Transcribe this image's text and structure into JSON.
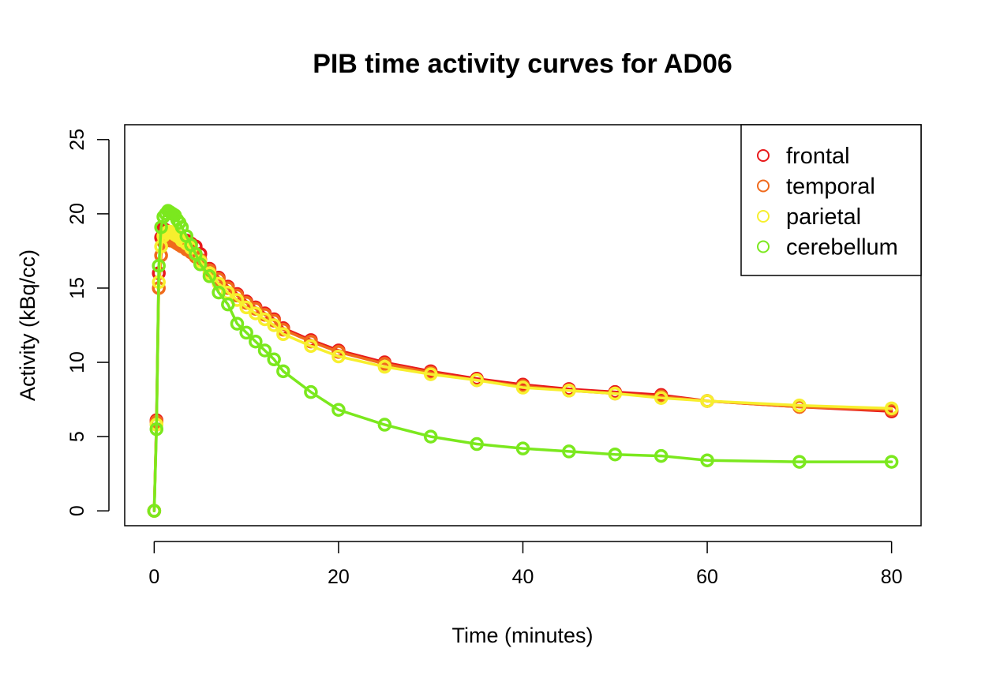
{
  "chart_data": {
    "type": "line",
    "title": "PIB time activity curves for AD06",
    "xlabel": "Time (minutes)",
    "ylabel": "Activity (kBq/cc)",
    "xlim": [
      -3.2,
      83.2
    ],
    "ylim": [
      -1.0,
      26.0
    ],
    "xticks": [
      0,
      20,
      40,
      60,
      80
    ],
    "yticks": [
      0,
      5,
      10,
      15,
      20,
      25
    ],
    "grid": false,
    "legend": "top-right",
    "marker": "open-circle",
    "x": [
      0,
      0.25,
      0.5,
      0.75,
      1,
      1.25,
      1.5,
      1.75,
      2,
      2.25,
      2.5,
      2.75,
      3,
      3.5,
      4,
      4.5,
      5,
      6,
      7,
      8,
      9,
      10,
      11,
      12,
      13,
      14,
      17,
      20,
      25,
      30,
      35,
      40,
      45,
      50,
      55,
      60,
      70,
      80
    ],
    "series": [
      {
        "name": "frontal",
        "color": "#e8191b",
        "values": [
          0,
          6.1,
          16.0,
          18.4,
          19.0,
          18.9,
          18.8,
          18.7,
          18.7,
          18.6,
          18.5,
          18.4,
          18.3,
          18.2,
          18.0,
          17.8,
          17.3,
          16.3,
          15.7,
          15.1,
          14.6,
          14.1,
          13.7,
          13.3,
          12.9,
          12.3,
          11.5,
          10.8,
          10.0,
          9.4,
          8.9,
          8.5,
          8.2,
          8.0,
          7.8,
          7.4,
          7.0,
          6.7
        ]
      },
      {
        "name": "temporal",
        "color": "#f06a1c",
        "values": [
          0,
          6.0,
          15.0,
          17.2,
          18.1,
          18.3,
          18.3,
          18.2,
          18.2,
          18.1,
          18.0,
          17.9,
          17.8,
          17.6,
          17.4,
          17.1,
          16.9,
          16.2,
          15.6,
          15.0,
          14.5,
          14.0,
          13.6,
          13.2,
          12.8,
          12.2,
          11.4,
          10.7,
          9.9,
          9.3,
          8.8,
          8.4,
          8.1,
          7.9,
          7.7,
          7.4,
          7.0,
          6.8
        ]
      },
      {
        "name": "parietal",
        "color": "#f7ef2e",
        "values": [
          0,
          5.8,
          15.4,
          17.8,
          18.5,
          18.7,
          18.8,
          18.8,
          18.7,
          18.6,
          18.5,
          18.4,
          18.2,
          18.0,
          17.7,
          17.3,
          16.8,
          16.0,
          15.3,
          14.7,
          14.2,
          13.7,
          13.3,
          12.9,
          12.5,
          11.9,
          11.1,
          10.4,
          9.7,
          9.2,
          8.8,
          8.3,
          8.1,
          7.9,
          7.6,
          7.4,
          7.1,
          6.9
        ]
      },
      {
        "name": "cerebellum",
        "color": "#7be81e",
        "values": [
          0,
          5.5,
          16.5,
          19.1,
          19.8,
          20.0,
          20.2,
          20.1,
          20.0,
          19.9,
          19.6,
          19.4,
          19.1,
          18.5,
          17.9,
          17.3,
          16.6,
          15.8,
          14.7,
          13.9,
          12.6,
          12.0,
          11.4,
          10.8,
          10.2,
          9.4,
          8.0,
          6.8,
          5.8,
          5.0,
          4.5,
          4.2,
          4.0,
          3.8,
          3.7,
          3.4,
          3.3,
          3.3
        ]
      }
    ]
  }
}
